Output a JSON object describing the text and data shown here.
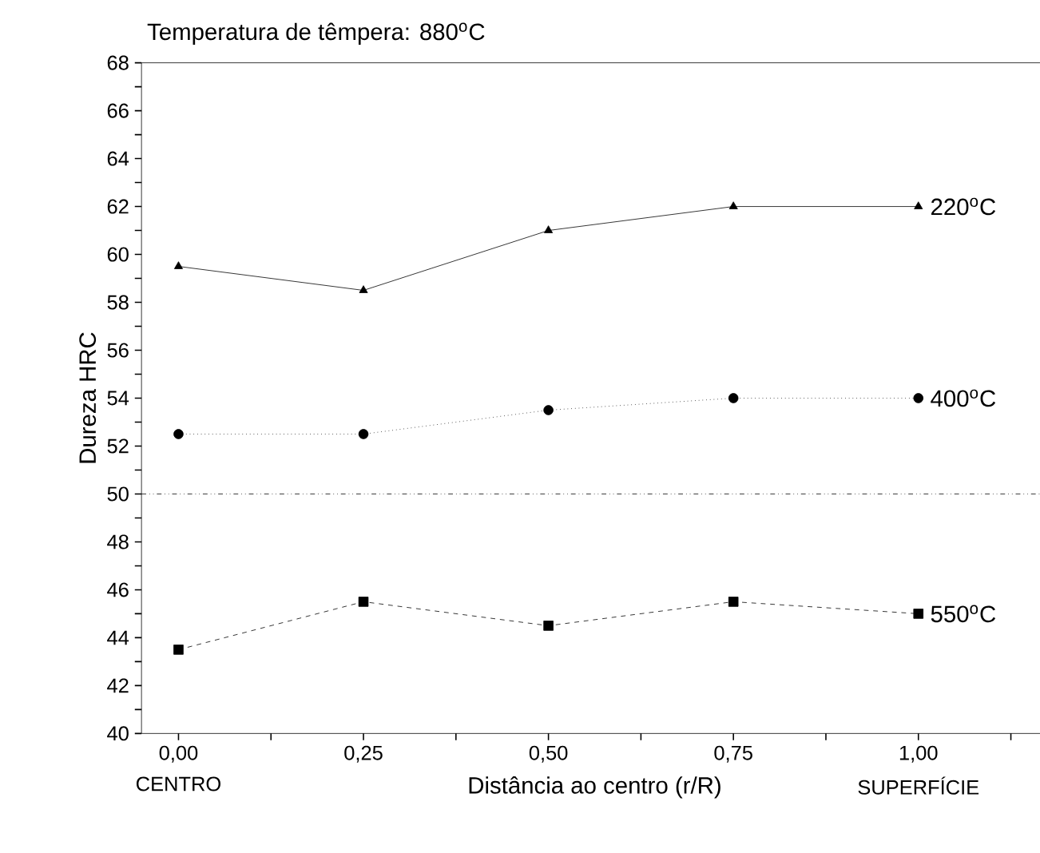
{
  "chart_data": {
    "type": "line",
    "title": "Temperatura de têmpera: 880$^{o}$C",
    "xlabel": "Distância ao centro (r/R)",
    "ylabel": "Dureza HRC",
    "x": [
      0,
      0.25,
      0.5,
      0.75,
      1
    ],
    "series": [
      {
        "name": "220$^{o}$C",
        "color": "#000000",
        "values": [
          59.5,
          58.5,
          61,
          62,
          62
        ],
        "marker": "triangle",
        "line_style": "solid"
      },
      {
        "name": "400$^{o}$C",
        "color": "#000000",
        "values": [
          52.5,
          52.5,
          53.5,
          54,
          54
        ],
        "marker": "circle",
        "line_style": "dotted"
      },
      {
        "name": "550$^{o}$C",
        "color": "#000000",
        "values": [
          43.5,
          45.5,
          44.5,
          45.5,
          45
        ],
        "marker": "square",
        "line_style": "dashed"
      }
    ],
    "xlim": [
      -0.05,
      1.175
    ],
    "xticks": [
      {
        "value": 0,
        "label": "0,00"
      },
      {
        "value": 0.125,
        "label": null
      },
      {
        "value": 0.25,
        "label": "0,25"
      },
      {
        "value": 0.375,
        "label": null
      },
      {
        "value": 0.5,
        "label": "0,50"
      },
      {
        "value": 0.625,
        "label": null
      },
      {
        "value": 0.75,
        "label": "0,75"
      },
      {
        "value": 0.875,
        "label": null
      },
      {
        "value": 1,
        "label": "1,00"
      },
      {
        "value": 1.125,
        "label": null
      }
    ],
    "ylim": [
      40,
      68
    ],
    "yticks": [
      40,
      {
        "value": 41,
        "label": null
      },
      42,
      {
        "value": 43,
        "label": null
      },
      44,
      {
        "value": 45,
        "label": null
      },
      46,
      {
        "value": 47,
        "label": null
      },
      48,
      {
        "value": 49,
        "label": null
      },
      50,
      {
        "value": 51,
        "label": null
      },
      52,
      {
        "value": 53,
        "label": null
      },
      54,
      {
        "value": 55,
        "label": null
      },
      56,
      {
        "value": 57,
        "label": null
      },
      58,
      {
        "value": 59,
        "label": null
      },
      60,
      {
        "value": 61,
        "label": null
      },
      62,
      {
        "value": 63,
        "label": null
      },
      64,
      {
        "value": 65,
        "label": null
      },
      66,
      {
        "value": 67,
        "label": null
      },
      68
    ],
    "ref_lines": [
      {
        "axis": "y",
        "value": 50,
        "line_style": "dashdotdotted",
        "color": "#000000"
      }
    ],
    "annotations": [
      "CENTRO",
      "SUPERFÍCIE"
    ],
    "grid": false
  }
}
